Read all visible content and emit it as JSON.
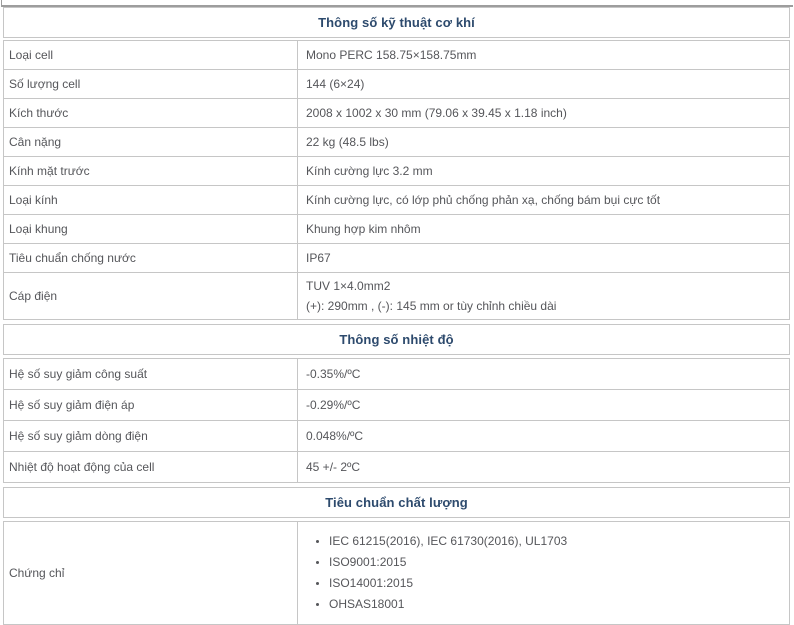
{
  "colors": {
    "border": "#c6c6c6",
    "top_border": "#9d9d9d",
    "body_text": "#55565a",
    "section_header_text": "#2d4a6d",
    "background": "#ffffff"
  },
  "table": {
    "sections": [
      {
        "title": "Thông số kỹ thuật cơ khí",
        "rows": [
          {
            "label": "Loại cell",
            "value": "Mono PERC 158.75×158.75mm"
          },
          {
            "label": "Số lượng cell",
            "value": "144 (6×24)"
          },
          {
            "label": "Kích thước",
            "value": "2008 x 1002 x 30 mm (79.06 x 39.45 x 1.18 inch)"
          },
          {
            "label": "Cân nặng",
            "value": "22 kg (48.5 lbs)"
          },
          {
            "label": "Kính mặt trước",
            "value": "Kính cường lực 3.2 mm"
          },
          {
            "label": "Loại kính",
            "value": "Kính cường lực, có lớp phủ chống phản xạ, chống bám bụi cực tốt"
          },
          {
            "label": "Loại khung",
            "value": "Khung hợp kim nhôm"
          },
          {
            "label": "Tiêu chuẩn chống nước",
            "value": "IP67"
          },
          {
            "label": "Cáp điện",
            "lines": [
              "TUV 1×4.0mm2",
              "(+): 290mm , (-): 145 mm or tùy chỉnh chiều dài"
            ]
          }
        ]
      },
      {
        "title": "Thông số nhiệt độ",
        "rows": [
          {
            "label": "Hệ số suy giảm công suất",
            "value": "-0.35%/ºC"
          },
          {
            "label": "Hệ số suy giảm điện áp",
            "value": "-0.29%/ºC"
          },
          {
            "label": "Hệ số suy giảm dòng điện",
            "value": "0.048%/ºC"
          },
          {
            "label": "Nhiệt độ hoạt động của cell",
            "value": "45 +/- 2ºC"
          }
        ]
      },
      {
        "title": "Tiêu chuẩn chất lượng",
        "rows": [
          {
            "label": "Chứng chỉ",
            "bullets": [
              "IEC 61215(2016), IEC 61730(2016), UL1703",
              "ISO9001:2015",
              "ISO14001:2015",
              "OHSAS18001"
            ]
          }
        ]
      }
    ]
  }
}
